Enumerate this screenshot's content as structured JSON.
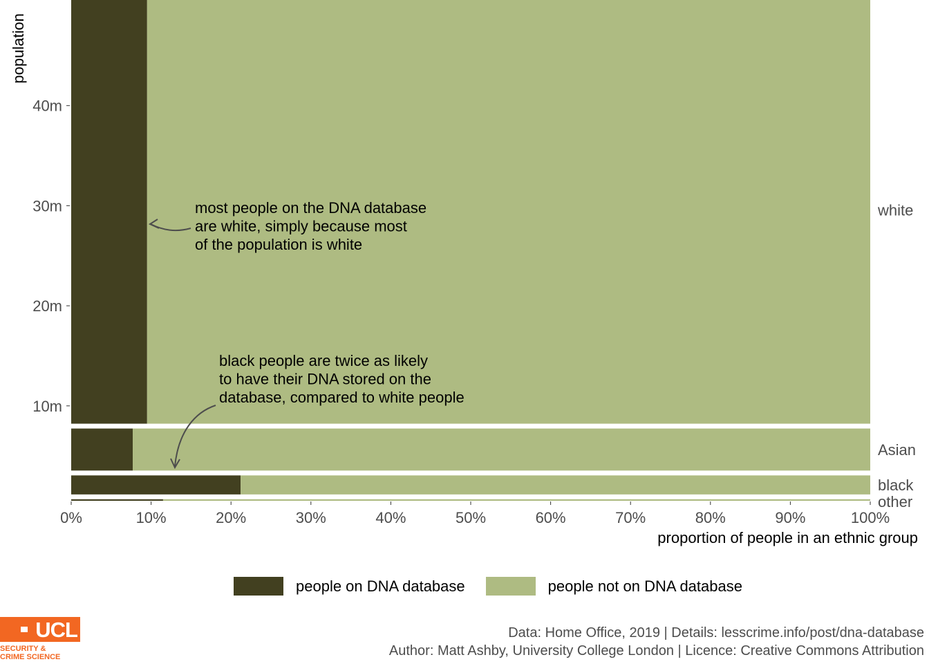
{
  "chart_data": {
    "type": "bar",
    "subtype": "mosaic (stacked proportion, bar height = population)",
    "ylabel": "population",
    "xlabel": "proportion of people in an ethnic group",
    "y_ticks": [
      {
        "value": 10,
        "label": "10m"
      },
      {
        "value": 20,
        "label": "20m"
      },
      {
        "value": 30,
        "label": "30m"
      },
      {
        "value": 40,
        "label": "40m"
      }
    ],
    "x_ticks": [
      {
        "value": 0,
        "label": "0%"
      },
      {
        "value": 10,
        "label": "10%"
      },
      {
        "value": 20,
        "label": "20%"
      },
      {
        "value": 30,
        "label": "30%"
      },
      {
        "value": 40,
        "label": "40%"
      },
      {
        "value": 50,
        "label": "50%"
      },
      {
        "value": 60,
        "label": "60%"
      },
      {
        "value": 70,
        "label": "70%"
      },
      {
        "value": 80,
        "label": "80%"
      },
      {
        "value": 90,
        "label": "90%"
      },
      {
        "value": 100,
        "label": "100%"
      }
    ],
    "xlim": [
      0,
      100
    ],
    "ylim": [
      0,
      49
    ],
    "groups": [
      {
        "name": "other",
        "population_m": 0.15,
        "on_database_pct": 11.5
      },
      {
        "name": "black",
        "population_m": 1.9,
        "on_database_pct": 21.2
      },
      {
        "name": "Asian",
        "population_m": 4.2,
        "on_database_pct": 7.7
      },
      {
        "name": "white",
        "population_m": 42.7,
        "on_database_pct": 9.5
      }
    ],
    "series": [
      {
        "name": "people on DNA database",
        "color": "#424020"
      },
      {
        "name": "people not on DNA database",
        "color": "#aebb82"
      }
    ],
    "annotations": [
      {
        "lines": [
          "most people on the DNA database",
          "are white, simply because most",
          "of the population is white"
        ]
      },
      {
        "lines": [
          "black people are twice as likely",
          "to have their DNA stored on the",
          "database, compared to white people"
        ]
      }
    ],
    "grid": false,
    "legend_position": "bottom"
  },
  "legend": {
    "on_label": "people on DNA database",
    "off_label": "people not on DNA database",
    "on_color": "#424020",
    "off_color": "#aebb82"
  },
  "caption": {
    "line1": "Data: Home Office, 2019 |  Details: lesscrime.info/post/dna-database",
    "line2": "Author: Matt Ashby, University College London |  Licence: Creative Commons Attribution"
  },
  "logo": {
    "name": "UCL",
    "line1": "SECURITY &",
    "line2": "CRIME SCIENCE",
    "color": "#f26722"
  }
}
